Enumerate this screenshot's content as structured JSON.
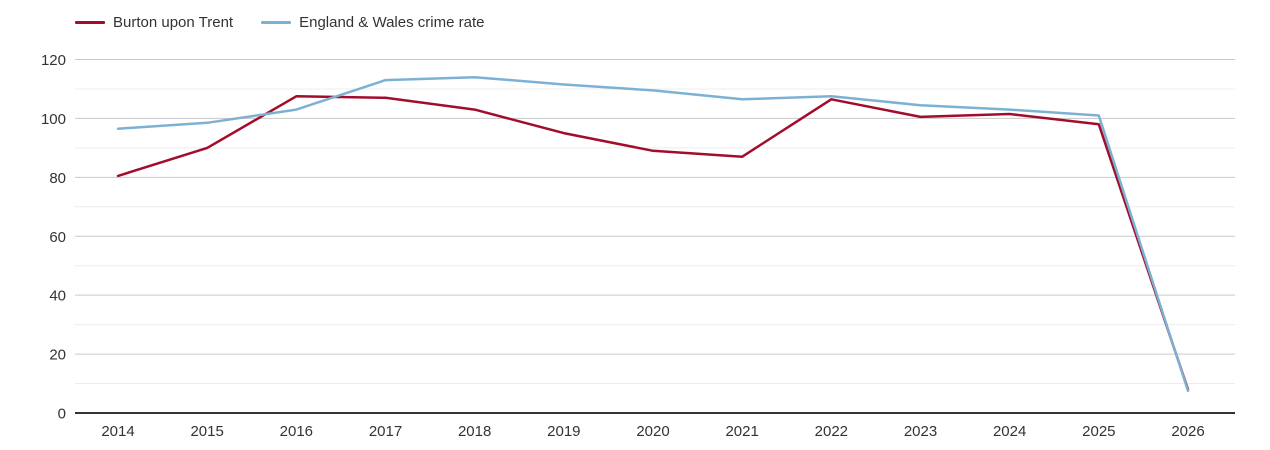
{
  "chart_data": {
    "type": "line",
    "x": [
      2014,
      2015,
      2016,
      2017,
      2018,
      2019,
      2020,
      2021,
      2022,
      2023,
      2024,
      2025,
      2026
    ],
    "series": [
      {
        "name": "Burton upon Trent",
        "color": "#a30d2c",
        "values": [
          80.5,
          90,
          107.5,
          107,
          103,
          95,
          89,
          87,
          106.5,
          100.5,
          101.5,
          98,
          8
        ]
      },
      {
        "name": "England & Wales crime rate",
        "color": "#7db1d4",
        "values": [
          96.5,
          98.5,
          103,
          113,
          114,
          111.5,
          109.5,
          106.5,
          107.5,
          104.5,
          103,
          101,
          7.5
        ]
      }
    ],
    "title": "",
    "xlabel": "",
    "ylabel": "",
    "ylim": [
      0,
      120
    ],
    "y_ticks": [
      0,
      20,
      40,
      60,
      80,
      100,
      120
    ],
    "y_minor_ticks": [
      10,
      30,
      50,
      70,
      90,
      110
    ],
    "grid": true,
    "legend_position": "top-left"
  },
  "colors": {
    "grid_major": "#c9c9c9",
    "grid_minor": "#ececec",
    "axis": "#333333",
    "text": "#333333",
    "background": "#ffffff"
  }
}
